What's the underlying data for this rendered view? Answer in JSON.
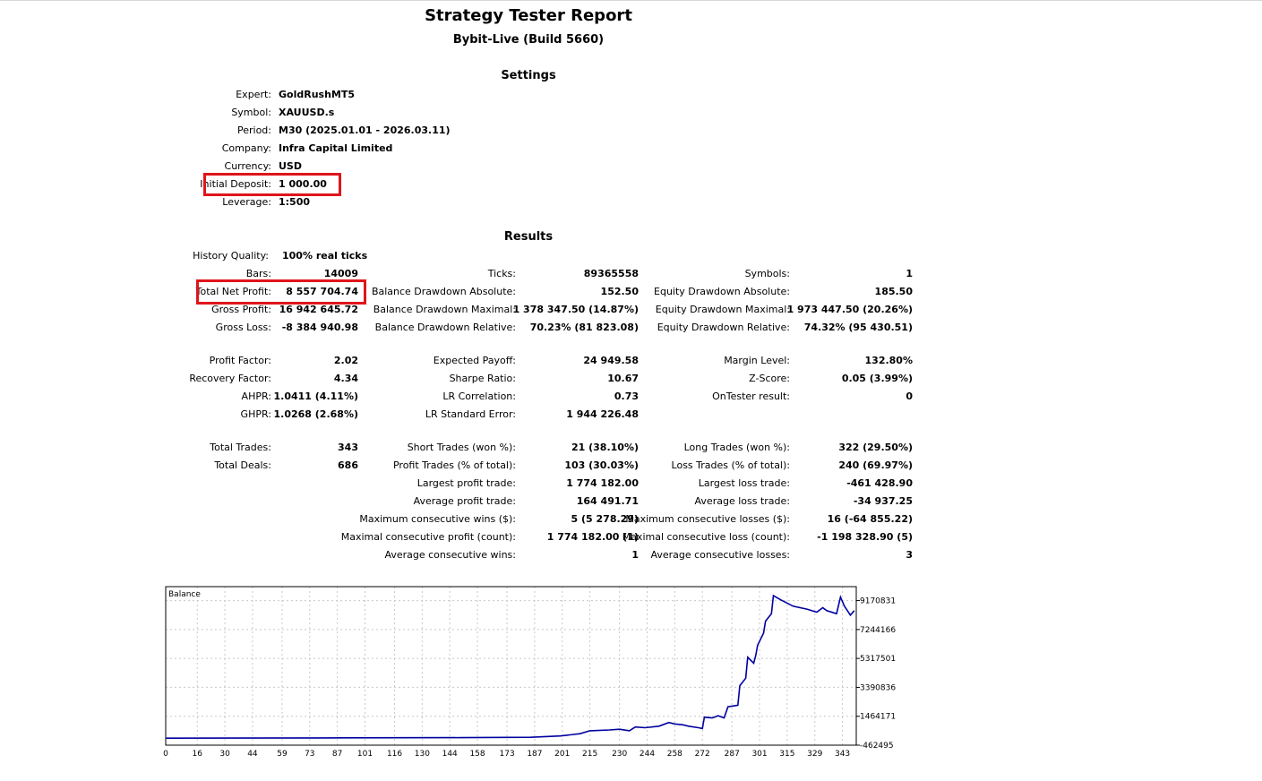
{
  "header": {
    "title": "Strategy Tester Report",
    "subtitle": "Bybit-Live (Build 5660)"
  },
  "settings": {
    "heading": "Settings",
    "rows": [
      {
        "label": "Expert:",
        "value": "GoldRushMT5"
      },
      {
        "label": "Symbol:",
        "value": "XAUUSD.s"
      },
      {
        "label": "Period:",
        "value": "M30 (2025.01.01 - 2026.03.11)"
      },
      {
        "label": "Company:",
        "value": "Infra Capital Limited"
      },
      {
        "label": "Currency:",
        "value": "USD"
      },
      {
        "label": "Initial Deposit:",
        "value": "1 000.00"
      },
      {
        "label": "Leverage:",
        "value": "1:500"
      }
    ]
  },
  "results": {
    "heading": "Results",
    "history_quality": {
      "label": "History Quality:",
      "value": "100% real ticks"
    },
    "col1": [
      {
        "label": "Bars:",
        "value": "14009"
      },
      {
        "label": "Total Net Profit:",
        "value": "8 557 704.74"
      },
      {
        "label": "Gross Profit:",
        "value": "16 942 645.72"
      },
      {
        "label": "Gross Loss:",
        "value": "-8 384 940.98"
      },
      {
        "label": "Profit Factor:",
        "value": "2.02"
      },
      {
        "label": "Recovery Factor:",
        "value": "4.34"
      },
      {
        "label": "AHPR:",
        "value": "1.0411 (4.11%)"
      },
      {
        "label": "GHPR:",
        "value": "1.0268 (2.68%)"
      },
      {
        "label": "Total Trades:",
        "value": "343"
      },
      {
        "label": "Total Deals:",
        "value": "686"
      }
    ],
    "col2": [
      {
        "label": "Ticks:",
        "value": "89365558"
      },
      {
        "label": "Balance Drawdown Absolute:",
        "value": "152.50"
      },
      {
        "label": "Balance Drawdown Maximal:",
        "value": "1 378 347.50 (14.87%)"
      },
      {
        "label": "Balance Drawdown Relative:",
        "value": "70.23% (81 823.08)"
      },
      {
        "label": "Expected Payoff:",
        "value": "24 949.58"
      },
      {
        "label": "Sharpe Ratio:",
        "value": "10.67"
      },
      {
        "label": "LR Correlation:",
        "value": "0.73"
      },
      {
        "label": "LR Standard Error:",
        "value": "1 944 226.48"
      },
      {
        "label": "Short Trades (won %):",
        "value": "21 (38.10%)"
      },
      {
        "label": "Profit Trades (% of total):",
        "value": "103 (30.03%)"
      },
      {
        "label": "Largest profit trade:",
        "value": "1 774 182.00"
      },
      {
        "label": "Average profit trade:",
        "value": "164 491.71"
      },
      {
        "label": "Maximum consecutive wins ($):",
        "value": "5 (5 278.29)"
      },
      {
        "label": "Maximal consecutive profit (count):",
        "value": "1 774 182.00 (1)"
      },
      {
        "label": "Average consecutive wins:",
        "value": "1"
      }
    ],
    "col3": [
      {
        "label": "Symbols:",
        "value": "1"
      },
      {
        "label": "Equity Drawdown Absolute:",
        "value": "185.50"
      },
      {
        "label": "Equity Drawdown Maximal:",
        "value": "1 973 447.50 (20.26%)"
      },
      {
        "label": "Equity Drawdown Relative:",
        "value": "74.32% (95 430.51)"
      },
      {
        "label": "Margin Level:",
        "value": "132.80%"
      },
      {
        "label": "Z-Score:",
        "value": "0.05 (3.99%)"
      },
      {
        "label": "OnTester result:",
        "value": "0"
      },
      {
        "label": "Long Trades (won %):",
        "value": "322 (29.50%)"
      },
      {
        "label": "Loss Trades (% of total):",
        "value": "240 (69.97%)"
      },
      {
        "label": "Largest loss trade:",
        "value": "-461 428.90"
      },
      {
        "label": "Average loss trade:",
        "value": "-34 937.25"
      },
      {
        "label": "Maximum consecutive losses ($):",
        "value": "16 (-64 855.22)"
      },
      {
        "label": "Maximal consecutive loss (count):",
        "value": "-1 198 328.90 (5)"
      },
      {
        "label": "Average consecutive losses:",
        "value": "3"
      }
    ]
  },
  "colors": {
    "highlight": "#e0141c",
    "line": "#0000a0",
    "grid": "#c8c8c8"
  },
  "chart_data": {
    "type": "line",
    "legend": "Balance",
    "x_ticks": [
      0,
      16,
      30,
      44,
      59,
      73,
      87,
      101,
      116,
      130,
      144,
      158,
      173,
      187,
      201,
      215,
      230,
      244,
      258,
      272,
      287,
      301,
      315,
      329,
      343
    ],
    "y_ticks": [
      9170831,
      7244166,
      5317501,
      3390836,
      1464171,
      -462495
    ],
    "xlim": [
      0,
      350
    ],
    "ylim": [
      -462495,
      10100000
    ],
    "series": [
      {
        "values": [
          [
            0,
            1000
          ],
          [
            80,
            20000
          ],
          [
            150,
            40000
          ],
          [
            185,
            60000
          ],
          [
            200,
            150000
          ],
          [
            210,
            300000
          ],
          [
            215,
            500000
          ],
          [
            225,
            550000
          ],
          [
            230,
            600000
          ],
          [
            235,
            500000
          ],
          [
            238,
            750000
          ],
          [
            243,
            700000
          ],
          [
            250,
            800000
          ],
          [
            255,
            1050000
          ],
          [
            258,
            950000
          ],
          [
            262,
            900000
          ],
          [
            265,
            800000
          ],
          [
            270,
            700000
          ],
          [
            272,
            650000
          ],
          [
            273,
            1400000
          ],
          [
            277,
            1350000
          ],
          [
            280,
            1500000
          ],
          [
            283,
            1350000
          ],
          [
            285,
            2100000
          ],
          [
            290,
            2200000
          ],
          [
            291,
            3500000
          ],
          [
            294,
            4000000
          ],
          [
            295,
            5400000
          ],
          [
            298,
            5000000
          ],
          [
            299,
            5500000
          ],
          [
            300,
            6200000
          ],
          [
            303,
            7000000
          ],
          [
            304,
            7800000
          ],
          [
            307,
            8300000
          ],
          [
            308,
            9500000
          ],
          [
            312,
            9200000
          ],
          [
            318,
            8800000
          ],
          [
            325,
            8600000
          ],
          [
            330,
            8400000
          ],
          [
            333,
            8700000
          ],
          [
            335,
            8500000
          ],
          [
            340,
            8300000
          ],
          [
            342,
            9400000
          ],
          [
            344,
            8800000
          ],
          [
            347,
            8200000
          ],
          [
            349,
            8500000
          ]
        ]
      }
    ]
  }
}
